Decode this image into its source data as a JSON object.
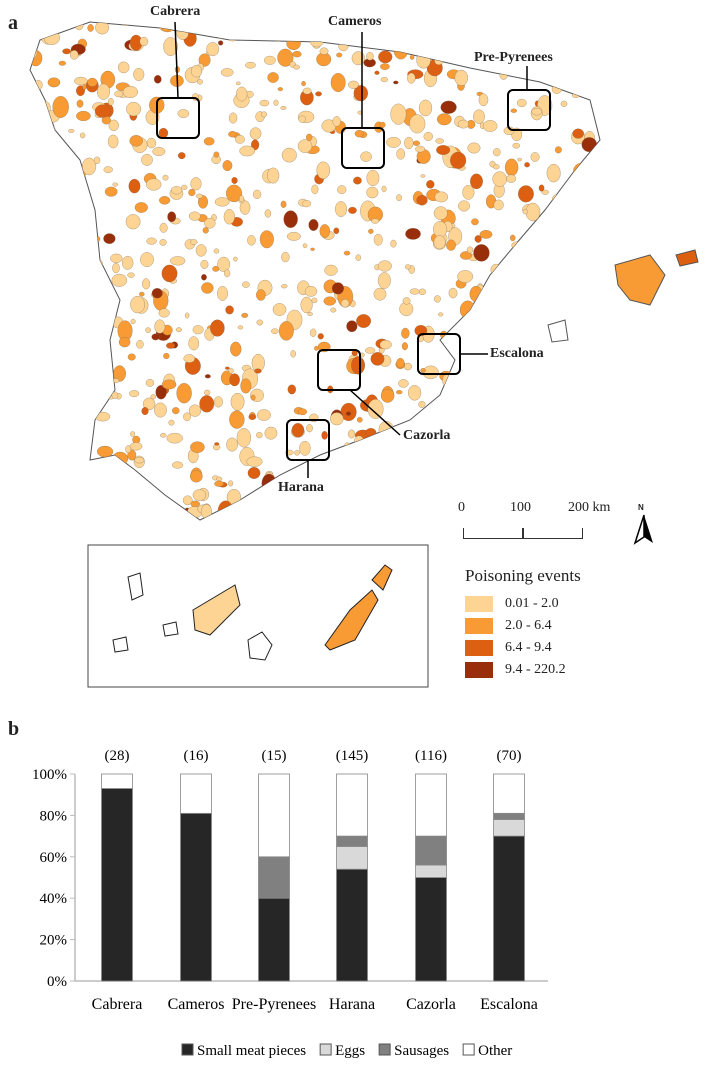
{
  "panel_a": {
    "letter": "a",
    "region_labels": [
      "Cabrera",
      "Cameros",
      "Pre-Pyrenees",
      "Escalona",
      "Cazorla",
      "Harana"
    ],
    "scale_bar": {
      "ticks": [
        "0",
        "100",
        "200 km"
      ]
    },
    "north_arrow": "N",
    "legend": {
      "title": "Poisoning events",
      "items": [
        {
          "label": "0.01 - 2.0",
          "color": "#fdd494"
        },
        {
          "label": "2.0 - 6.4",
          "color": "#f89b34"
        },
        {
          "label": "6.4 - 9.4",
          "color": "#dc5f12"
        },
        {
          "label": "9.4 - 220.2",
          "color": "#992e0b"
        }
      ]
    }
  },
  "panel_b": {
    "letter": "b"
  },
  "chart_data": {
    "type": "bar",
    "stacked": true,
    "categories": [
      "Cabrera",
      "Cameros",
      "Pre-Pyrenees",
      "Harana",
      "Cazorla",
      "Escalona"
    ],
    "counts": [
      "(28)",
      "(16)",
      "(15)",
      "(145)",
      "(116)",
      "(70)"
    ],
    "yticks": [
      "0%",
      "20%",
      "40%",
      "60%",
      "80%",
      "100%"
    ],
    "ylim": [
      0,
      100
    ],
    "legend_position": "bottom",
    "series": [
      {
        "name": "Small meat pieces",
        "color": "#262626",
        "values": [
          93,
          81,
          40,
          54,
          50,
          70
        ]
      },
      {
        "name": "Eggs",
        "color": "#d9d9d9",
        "values": [
          0,
          0,
          0,
          11,
          6,
          8
        ]
      },
      {
        "name": "Sausages",
        "color": "#808080",
        "values": [
          0,
          0,
          20,
          5,
          14,
          3
        ]
      },
      {
        "name": "Other",
        "color": "#ffffff",
        "values": [
          7,
          19,
          40,
          30,
          30,
          19
        ]
      }
    ]
  }
}
